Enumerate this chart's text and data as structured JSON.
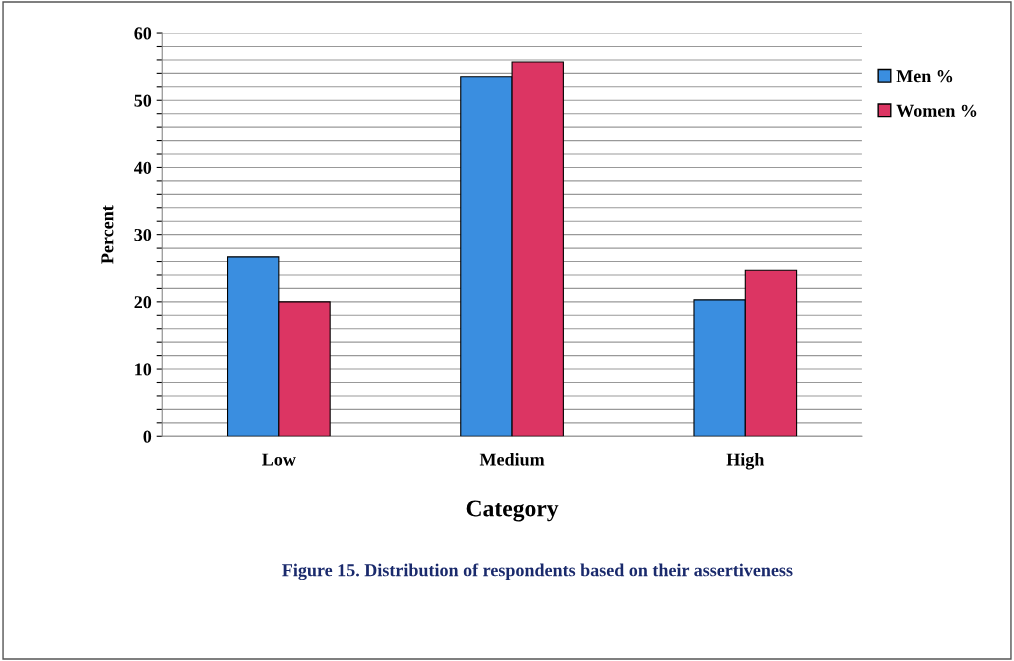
{
  "chart_data": {
    "type": "bar",
    "xlabel": "Category",
    "ylabel": "Percent",
    "categories": [
      "Low",
      "Medium",
      "High"
    ],
    "series": [
      {
        "name": "Men %",
        "color": "#3a8ee0",
        "values": [
          26.7,
          53.5,
          20.3
        ]
      },
      {
        "name": "Women %",
        "color": "#dc3563",
        "values": [
          20,
          55.7,
          24.7
        ]
      }
    ],
    "ylim": [
      0,
      60
    ],
    "yticks": [
      0,
      {
        "value": 2,
        "label": null
      },
      {
        "value": 4,
        "label": null
      },
      {
        "value": 6,
        "label": null
      },
      {
        "value": 8,
        "label": null
      },
      10,
      {
        "value": 12,
        "label": null
      },
      {
        "value": 14,
        "label": null
      },
      {
        "value": 16,
        "label": null
      },
      {
        "value": 18,
        "label": null
      },
      20,
      {
        "value": 22,
        "label": null
      },
      {
        "value": 24,
        "label": null
      },
      {
        "value": 26,
        "label": null
      },
      {
        "value": 28,
        "label": null
      },
      30,
      {
        "value": 32,
        "label": null
      },
      {
        "value": 34,
        "label": null
      },
      {
        "value": 36,
        "label": null
      },
      {
        "value": 38,
        "label": null
      },
      40,
      {
        "value": 42,
        "label": null
      },
      {
        "value": 44,
        "label": null
      },
      {
        "value": 46,
        "label": null
      },
      {
        "value": 48,
        "label": null
      },
      50,
      {
        "value": 52,
        "label": null
      },
      {
        "value": 54,
        "label": null
      },
      {
        "value": 56,
        "label": null
      },
      {
        "value": 58,
        "label": null
      },
      60
    ],
    "grid": "y",
    "legend": "top right",
    "annotations": [
      "Figure 15. Distribution of respondents based on their assertiveness"
    ]
  }
}
